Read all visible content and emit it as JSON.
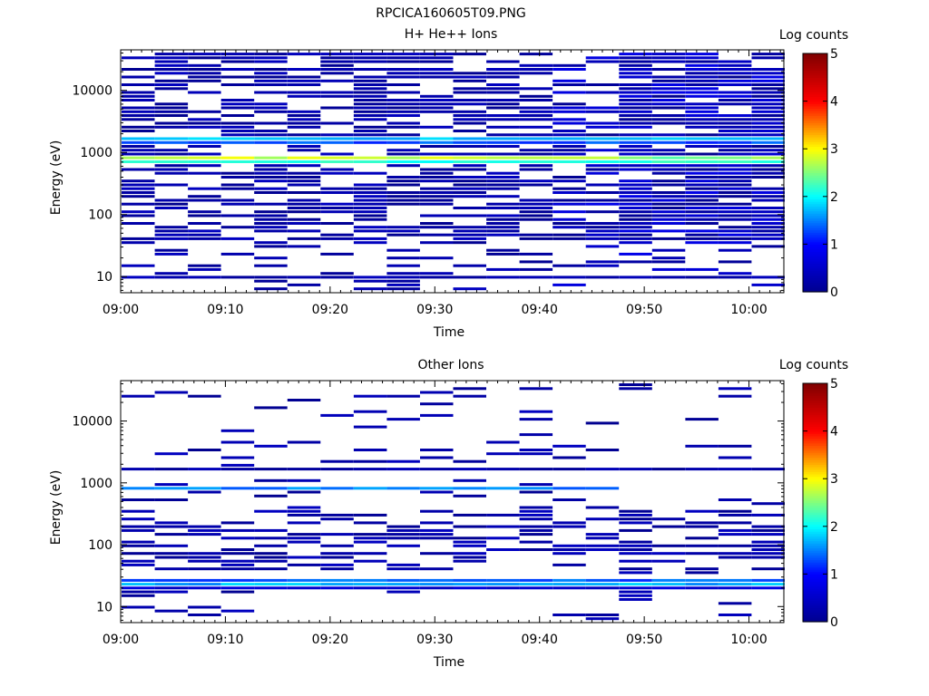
{
  "figure": {
    "title": "RPCICA160605T09.PNG"
  },
  "colors": {
    "colormap": [
      "#00008f",
      "#0000ff",
      "#00ffff",
      "#ffff00",
      "#ff0000",
      "#800000"
    ],
    "background": "#ffffff"
  },
  "chart_data": [
    {
      "type": "heatmap",
      "title": "H+ He++ Ions",
      "xlabel": "Time",
      "ylabel": "Energy (eV)",
      "y_scale": "log",
      "ylim": [
        5.5,
        45000
      ],
      "x_ticks": [
        "09:00",
        "09:10",
        "09:20",
        "09:30",
        "09:40",
        "09:50",
        "10:00"
      ],
      "y_ticks": [
        "10",
        "100",
        "1000",
        "10000"
      ],
      "colorbar": {
        "label": "Log counts",
        "range": [
          0,
          5
        ],
        "ticks": [
          "0",
          "1",
          "2",
          "3",
          "4",
          "5"
        ]
      },
      "time_bins": [
        "09:01:40",
        "09:04:50",
        "09:08:00",
        "09:11:10",
        "09:14:20",
        "09:17:30",
        "09:20:40",
        "09:23:50",
        "09:27:00",
        "09:30:10",
        "09:33:20",
        "09:36:30",
        "09:39:40",
        "09:42:50",
        "09:46:00",
        "09:49:10",
        "09:52:20",
        "09:55:30",
        "09:58:40",
        "10:01:50"
      ],
      "features": [
        {
          "energy_eV": 780,
          "log_counts": 3.0,
          "note": "peak band, bins 0-14"
        },
        {
          "energy_eV": 880,
          "log_counts": 2.7
        },
        {
          "energy_eV": 700,
          "log_counts": 2.2
        },
        {
          "energy_eV": 1550,
          "log_counts": 1.5
        },
        {
          "energy_eV": 1700,
          "log_counts": 1.8
        },
        {
          "energy_eV": 10,
          "log_counts": 0.3,
          "note": "sparse low-energy counts"
        }
      ]
    },
    {
      "type": "heatmap",
      "title": "Other Ions",
      "xlabel": "Time",
      "ylabel": "Energy (eV)",
      "y_scale": "log",
      "ylim": [
        5.5,
        45000
      ],
      "x_ticks": [
        "09:00",
        "09:10",
        "09:20",
        "09:30",
        "09:40",
        "09:50",
        "10:00"
      ],
      "y_ticks": [
        "10",
        "100",
        "1000",
        "10000"
      ],
      "colorbar": {
        "label": "Log counts",
        "range": [
          0,
          5
        ],
        "ticks": [
          "0",
          "1",
          "2",
          "3",
          "4",
          "5"
        ]
      },
      "time_bins": [
        "09:01:40",
        "09:04:50",
        "09:08:00",
        "09:11:10",
        "09:14:20",
        "09:17:30",
        "09:20:40",
        "09:23:50",
        "09:27:00",
        "09:30:10",
        "09:33:20",
        "09:36:30",
        "09:39:40",
        "09:42:50",
        "09:46:00",
        "09:49:10",
        "09:52:20",
        "09:55:30",
        "09:58:40",
        "10:01:50"
      ],
      "features": [
        {
          "energy_eV": 800,
          "log_counts": 1.6,
          "note": "band, bins 0-14"
        },
        {
          "energy_eV": 28,
          "log_counts": 1.5
        },
        {
          "energy_eV": 24,
          "log_counts": 1.8
        },
        {
          "energy_eV": 19,
          "log_counts": 0.8
        },
        {
          "energy_eV": 1600,
          "log_counts": 0.4
        }
      ]
    }
  ]
}
